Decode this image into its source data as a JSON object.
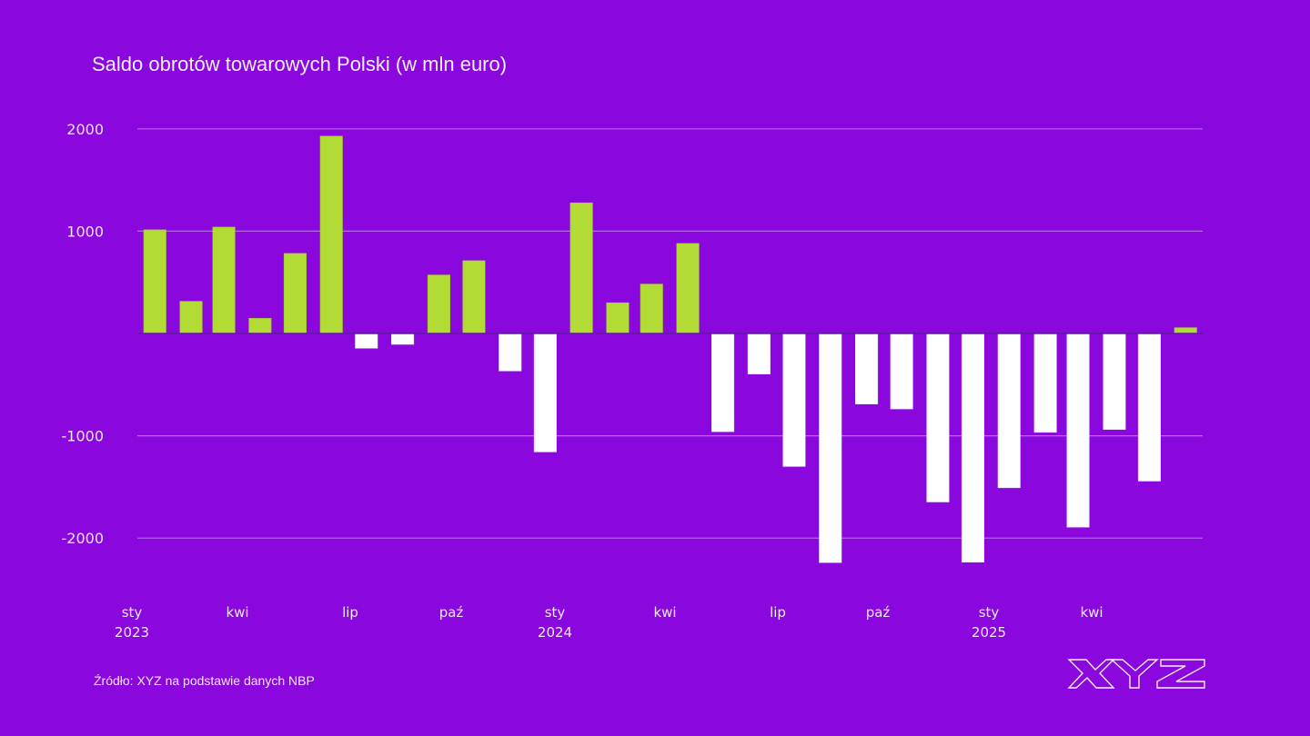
{
  "colors": {
    "background": "#8a08dd",
    "positive": "#b2dc35",
    "negative": "#ffffff",
    "grid": "#b66be8",
    "zero_line": "#5e1a9a"
  },
  "footer": {
    "source": "Źródło: XYZ na podstawie danych NBP",
    "logo_text": "XYZ"
  },
  "chart_data": {
    "type": "bar",
    "title": "Saldo obrotów towarowych Polski (w mln euro)",
    "xlabel": "",
    "ylabel": "",
    "ylim": [
      -2300,
      2000
    ],
    "yticks": [
      2000,
      1000,
      0,
      -1000,
      -2000
    ],
    "ytick_labels": [
      "2000",
      "1000",
      "",
      "-1000",
      "-2000"
    ],
    "grid": true,
    "legend": "none",
    "x_tick_labels": [
      {
        "month": "sty",
        "year": "2023"
      },
      {
        "month": "kwi",
        "year": ""
      },
      {
        "month": "lip",
        "year": ""
      },
      {
        "month": "paź",
        "year": ""
      },
      {
        "month": "sty",
        "year": "2024"
      },
      {
        "month": "kwi",
        "year": ""
      },
      {
        "month": "lip",
        "year": ""
      },
      {
        "month": "paź",
        "year": ""
      },
      {
        "month": "sty",
        "year": "2025"
      },
      {
        "month": "kwi",
        "year": ""
      }
    ],
    "categories": [
      "2023-01",
      "2023-02",
      "2023-03",
      "2023-04",
      "2023-05",
      "2023-06",
      "2023-07",
      "2023-08",
      "2023-09",
      "2023-10",
      "2023-11",
      "2023-12",
      "2024-01",
      "2024-02",
      "2024-03",
      "2024-04",
      "2024-05",
      "2024-06",
      "2024-07",
      "2024-08",
      "2024-09",
      "2024-10",
      "2024-11",
      "2024-12",
      "2025-01",
      "2025-02",
      "2025-03",
      "2025-04",
      "2025-05",
      "2025-06"
    ],
    "values": [
      1013,
      314,
      1040,
      148,
      782,
      1929,
      -145,
      -107,
      572,
      711,
      -367,
      -1158,
      1277,
      300,
      483,
      880,
      -960,
      -397,
      -1300,
      -2240,
      -690,
      -738,
      -1647,
      -2235,
      -1508,
      -966,
      -1893,
      -939,
      -1443,
      57
    ]
  }
}
